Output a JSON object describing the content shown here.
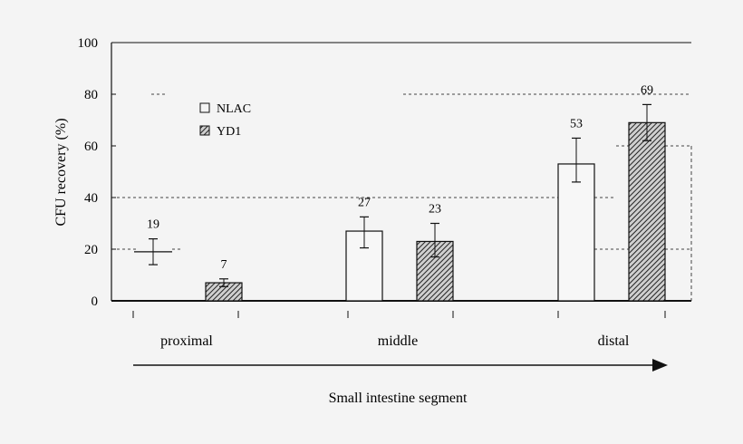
{
  "chart_data": {
    "type": "bar",
    "title": "",
    "xlabel": "Small intestine segment",
    "ylabel": "CFU recovery (%)",
    "ylim": [
      0,
      100
    ],
    "yticks": [
      0,
      20,
      40,
      60,
      80,
      100
    ],
    "grid": "dotted horizontal (partial)",
    "legend_position": "upper left inside",
    "categories": [
      "proximal",
      "middle",
      "distal"
    ],
    "series": [
      {
        "name": "NLAC",
        "pattern": "open",
        "values": [
          19,
          27,
          53
        ],
        "error_low": [
          14,
          20.5,
          46
        ],
        "error_high": [
          24,
          32.5,
          63
        ]
      },
      {
        "name": "YD1",
        "pattern": "hatched",
        "values": [
          7,
          23,
          69
        ],
        "error_low": [
          5.5,
          17,
          62
        ],
        "error_high": [
          8.5,
          30,
          76
        ]
      }
    ],
    "annotations": [
      "arrow pointing from proximal to distal along x-axis"
    ]
  },
  "colors": {
    "background": "#f4f4f4",
    "ink": "#111111",
    "hatch": "#333333"
  }
}
